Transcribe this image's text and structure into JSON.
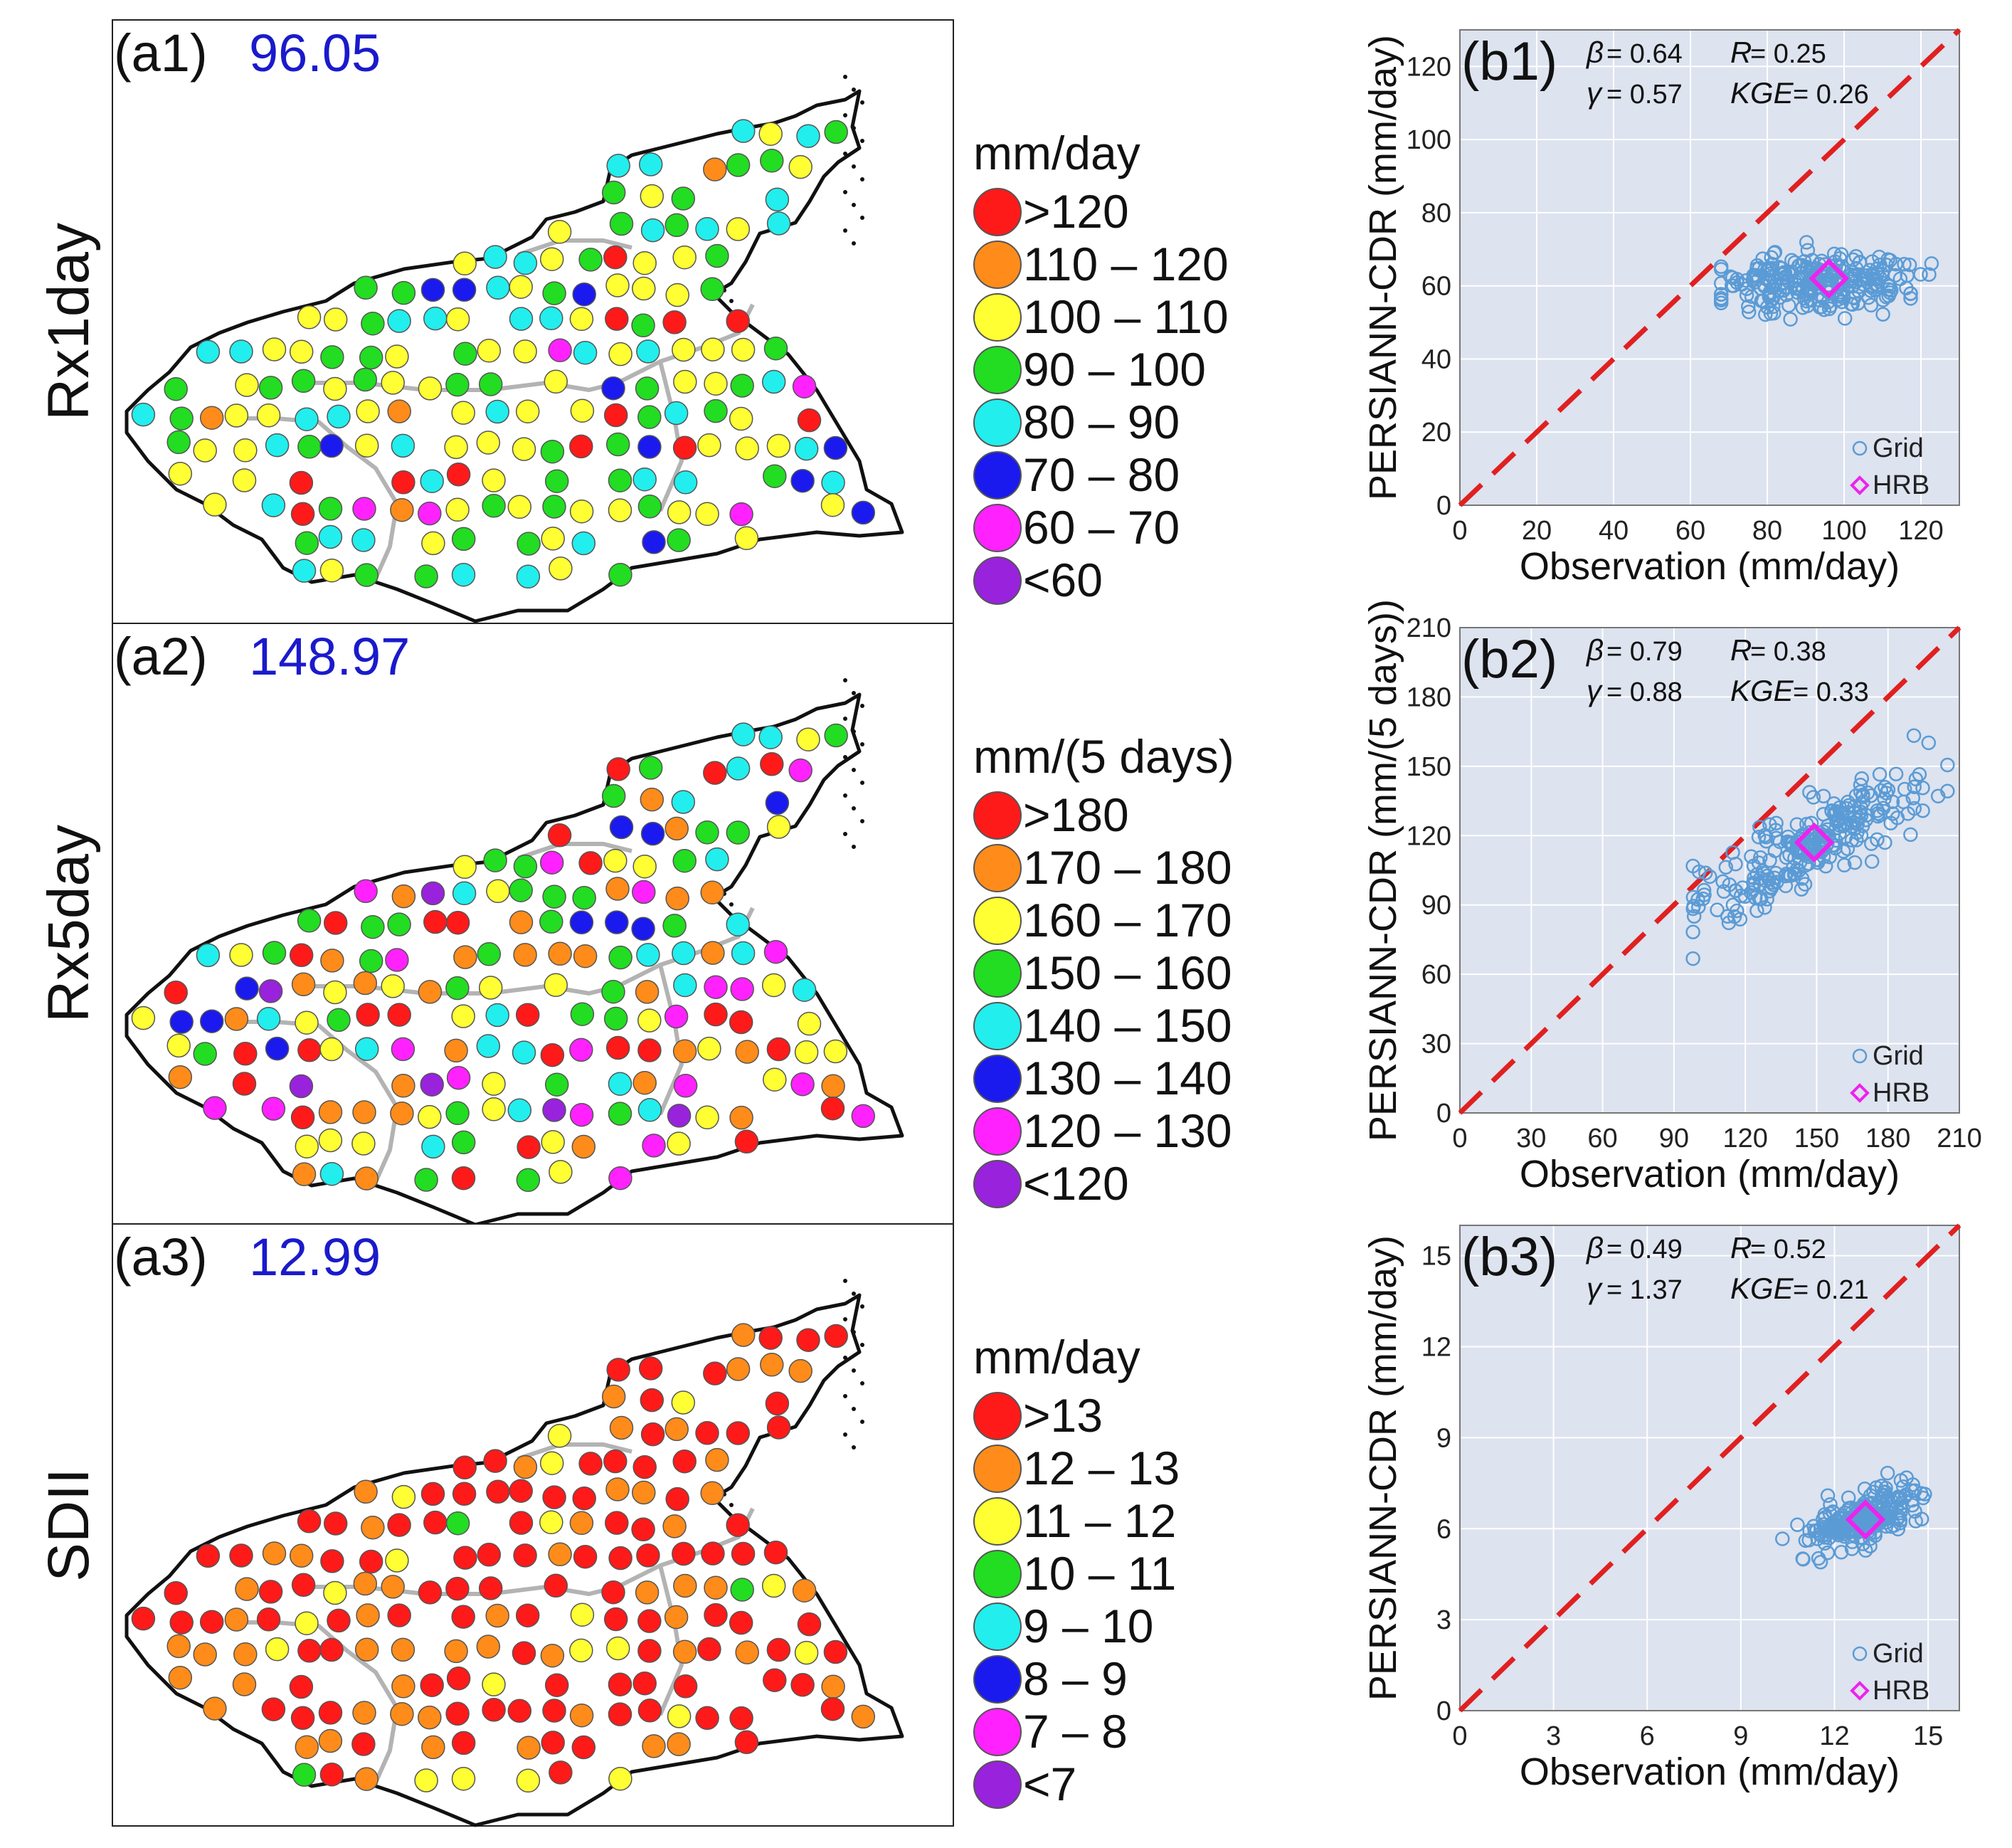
{
  "colors": {
    "red": "#ff1a1a",
    "orange": "#ff8c1a",
    "yellow": "#ffff33",
    "green": "#22dd22",
    "cyan": "#22eeee",
    "blue": "#1a1aee",
    "magenta": "#ff22ff",
    "purple": "#9922dd",
    "grid_point": "#5b9bd5",
    "basin_point": "#ee22ee",
    "diagonal": "#e02020",
    "panel_value": "#1a1acc",
    "plot_bg": "#dde3ef"
  },
  "chart_data": [
    {
      "type": "map",
      "panel": "(a1)",
      "value": "96.05",
      "row_label": "Rx1day",
      "legend_unit": "mm/day",
      "legend": [
        {
          "label": ">120",
          "color": "red"
        },
        {
          "label": "110 – 120",
          "color": "orange"
        },
        {
          "label": "100 – 110",
          "color": "yellow"
        },
        {
          "label": "90 – 100",
          "color": "green"
        },
        {
          "label": "80 – 90",
          "color": "cyan"
        },
        {
          "label": "70 – 80",
          "color": "blue"
        },
        {
          "label": "60 – 70",
          "color": "magenta"
        },
        {
          "label": "<60",
          "color": "purple"
        }
      ],
      "station_class_weights": {
        "red": 3,
        "orange": 5,
        "yellow": 30,
        "green": 28,
        "cyan": 22,
        "blue": 5,
        "magenta": 4,
        "purple": 0
      }
    },
    {
      "type": "map",
      "panel": "(a2)",
      "value": "148.97",
      "row_label": "Rx5day",
      "legend_unit": "mm/(5 days)",
      "legend": [
        {
          "label": ">180",
          "color": "red"
        },
        {
          "label": "170 – 180",
          "color": "orange"
        },
        {
          "label": "160 – 170",
          "color": "yellow"
        },
        {
          "label": "150 – 160",
          "color": "green"
        },
        {
          "label": "140 – 150",
          "color": "cyan"
        },
        {
          "label": "130 – 140",
          "color": "blue"
        },
        {
          "label": "120 – 130",
          "color": "magenta"
        },
        {
          "label": "<120",
          "color": "purple"
        }
      ],
      "station_class_weights": {
        "red": 18,
        "orange": 20,
        "yellow": 16,
        "green": 18,
        "cyan": 10,
        "blue": 9,
        "magenta": 10,
        "purple": 6
      }
    },
    {
      "type": "map",
      "panel": "(a3)",
      "value": "12.99",
      "row_label": "SDII",
      "legend_unit": "mm/day",
      "legend": [
        {
          "label": ">13",
          "color": "red"
        },
        {
          "label": "12 – 13",
          "color": "orange"
        },
        {
          "label": "11 – 12",
          "color": "yellow"
        },
        {
          "label": "10 – 11",
          "color": "green"
        },
        {
          "label": "9 – 10",
          "color": "cyan"
        },
        {
          "label": "8 – 9",
          "color": "blue"
        },
        {
          "label": "7 – 8",
          "color": "magenta"
        },
        {
          "label": "<7",
          "color": "purple"
        }
      ],
      "station_class_weights": {
        "red": 55,
        "orange": 28,
        "yellow": 14,
        "green": 3,
        "cyan": 0,
        "blue": 0,
        "magenta": 0,
        "purple": 0
      }
    },
    {
      "type": "scatter",
      "panel": "(b1)",
      "xlabel": "Observation (mm/day)",
      "ylabel": "PERSIANN-CDR (mm/day)",
      "xlim": [
        0,
        130
      ],
      "ylim": [
        0,
        130
      ],
      "xticks": [
        0,
        20,
        40,
        60,
        80,
        100,
        120
      ],
      "yticks": [
        0,
        20,
        40,
        60,
        80,
        100,
        120
      ],
      "stats": [
        {
          "sym": "β",
          "value": "= 0.64"
        },
        {
          "sym": "R",
          "value": "= 0.25"
        },
        {
          "sym": "γ",
          "value": "= 0.57"
        },
        {
          "sym": "KGE",
          "value": "= 0.26"
        }
      ],
      "grid_cloud": {
        "x_center": 93,
        "x_spread": 13,
        "x_min": 68,
        "x_max": 127,
        "y_center": 61,
        "y_spread": 4,
        "n": 260
      },
      "hrb": [
        96.05,
        62
      ],
      "legend": [
        "Grid",
        "HRB"
      ]
    },
    {
      "type": "scatter",
      "panel": "(b2)",
      "xlabel": "Observation (mm/day)",
      "ylabel": "PERSIANN-CDR (mm/(5 days))",
      "xlim": [
        0,
        210
      ],
      "ylim": [
        0,
        210
      ],
      "xticks": [
        0,
        30,
        60,
        90,
        120,
        150,
        180,
        210
      ],
      "yticks": [
        0,
        30,
        60,
        90,
        120,
        150,
        180,
        210
      ],
      "stats": [
        {
          "sym": "β",
          "value": "= 0.79"
        },
        {
          "sym": "R",
          "value": "= 0.38"
        },
        {
          "sym": "γ",
          "value": "= 0.88"
        },
        {
          "sym": "KGE",
          "value": "= 0.33"
        }
      ],
      "grid_cloud": {
        "x_center": 148,
        "x_spread": 22,
        "x_min": 98,
        "x_max": 205,
        "slope": 0.55,
        "y_offset": 117,
        "y_spread": 9,
        "n": 260
      },
      "hrb": [
        148.97,
        117
      ],
      "legend": [
        "Grid",
        "HRB"
      ]
    },
    {
      "type": "scatter",
      "panel": "(b3)",
      "xlabel": "Observation (mm/day)",
      "ylabel": "PERSIANN-CDR (mm/day)",
      "xlim": [
        0,
        16
      ],
      "ylim": [
        0,
        16
      ],
      "xticks": [
        0,
        3,
        6,
        9,
        12,
        15
      ],
      "yticks": [
        0,
        3,
        6,
        9,
        12,
        15
      ],
      "stats": [
        {
          "sym": "β",
          "value": "= 0.49"
        },
        {
          "sym": "R",
          "value": "= 0.52"
        },
        {
          "sym": "γ",
          "value": "= 1.37"
        },
        {
          "sym": "KGE",
          "value": "= 0.21"
        }
      ],
      "grid_cloud": {
        "x_center": 12.9,
        "x_spread": 0.9,
        "x_min": 9.8,
        "x_max": 15.3,
        "slope": 0.35,
        "y_offset": 6.3,
        "y_spread": 0.45,
        "n": 230
      },
      "hrb": [
        12.99,
        6.3
      ],
      "legend": [
        "Grid",
        "HRB"
      ]
    }
  ]
}
